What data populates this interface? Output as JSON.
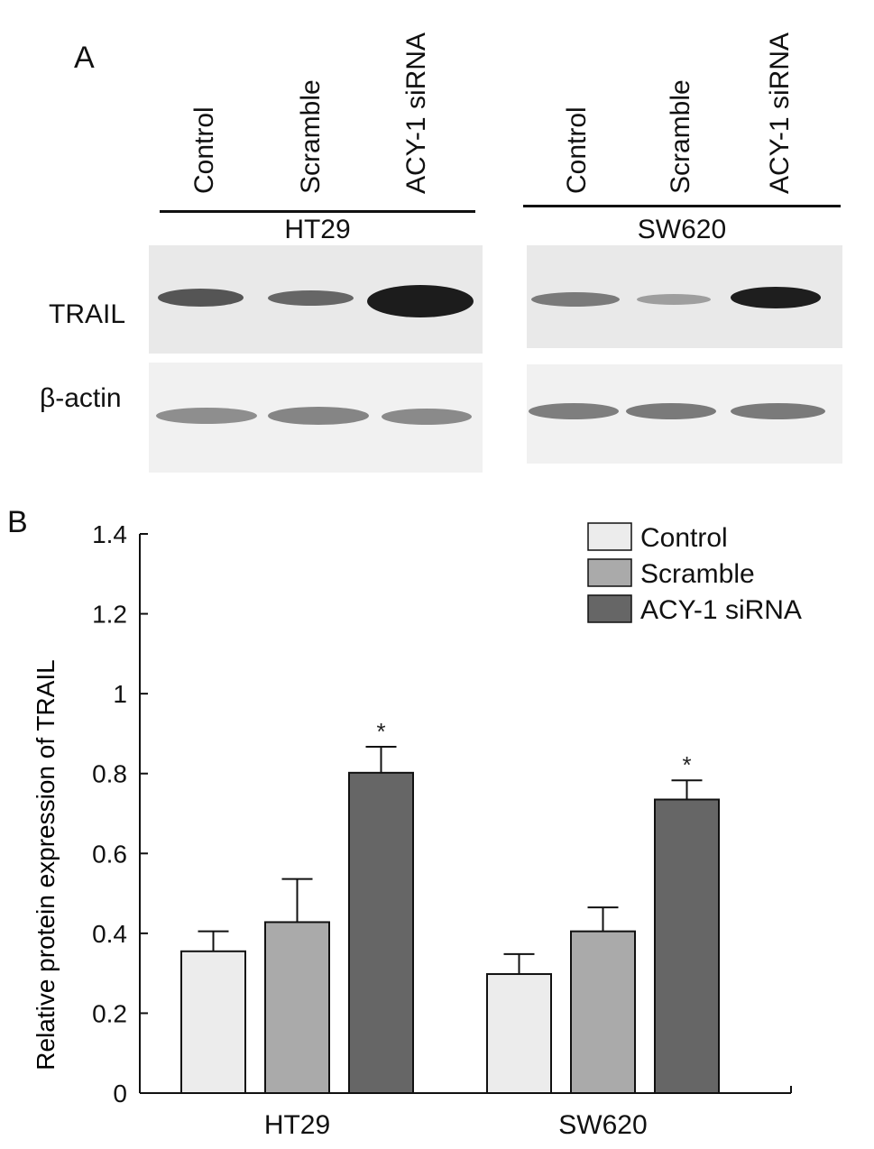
{
  "panel_a": {
    "letter": "A",
    "groups": [
      {
        "name": "HT29",
        "lanes": [
          "Control",
          "Scramble",
          "ACY-1 siRNA"
        ],
        "trail_intensity": [
          0.55,
          0.45,
          1.0
        ],
        "actin_intensity": [
          0.45,
          0.5,
          0.45
        ]
      },
      {
        "name": "SW620",
        "lanes": [
          "Control",
          "Scramble",
          "ACY-1 siRNA"
        ],
        "trail_intensity": [
          0.35,
          0.2,
          0.95
        ],
        "actin_intensity": [
          0.55,
          0.55,
          0.55
        ]
      }
    ],
    "rows": [
      "TRAIL",
      "β-actin"
    ]
  },
  "panel_b": {
    "letter": "B"
  },
  "chart_data": {
    "type": "bar",
    "categories": [
      "HT29",
      "SW620"
    ],
    "series": [
      {
        "name": "Control",
        "values": [
          0.355,
          0.298
        ],
        "errors": [
          0.05,
          0.05
        ],
        "color": "#ececec"
      },
      {
        "name": "Scramble",
        "values": [
          0.428,
          0.405
        ],
        "errors": [
          0.108,
          0.06
        ],
        "color": "#aaaaaa"
      },
      {
        "name": "ACY-1 siRNA",
        "values": [
          0.802,
          0.735
        ],
        "errors": [
          0.065,
          0.048
        ],
        "color": "#666666"
      }
    ],
    "significance": [
      {
        "category": "HT29",
        "series": "ACY-1 siRNA",
        "mark": "*"
      },
      {
        "category": "SW620",
        "series": "ACY-1 siRNA",
        "mark": "*"
      }
    ],
    "ylabel": "Relative protein expression of TRAIL",
    "xlabel": "",
    "ylim": [
      0,
      1.4
    ],
    "yticks": [
      "0",
      "0.2",
      "0.4",
      "0.6",
      "0.8",
      "1",
      "1.2",
      "1.4"
    ],
    "legend_position": "top-right",
    "grid": false
  }
}
